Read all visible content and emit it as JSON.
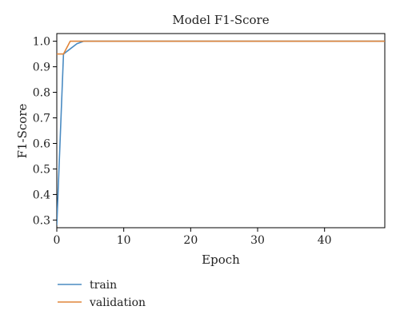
{
  "chart_data": {
    "type": "line",
    "title": "Model F1-Score",
    "xlabel": "Epoch",
    "ylabel": "F1-Score",
    "xlim": [
      0,
      49
    ],
    "ylim": [
      0.27,
      1.03
    ],
    "xticks": [
      0,
      10,
      20,
      30,
      40
    ],
    "yticks": [
      0.3,
      0.4,
      0.5,
      0.6,
      0.7,
      0.8,
      0.9,
      1.0
    ],
    "ytick_labels": [
      "0.3",
      "0.4",
      "0.5",
      "0.6",
      "0.7",
      "0.8",
      "0.9",
      "1.0"
    ],
    "grid": false,
    "legend_position": "below-left",
    "series": [
      {
        "name": "train",
        "color": "#4a8bc2",
        "x": [
          0,
          1,
          2,
          3,
          4,
          5,
          6,
          7,
          8,
          9,
          10,
          11,
          12,
          13,
          14,
          15,
          16,
          17,
          18,
          19,
          20,
          21,
          22,
          23,
          24,
          25,
          26,
          27,
          28,
          29,
          30,
          31,
          32,
          33,
          34,
          35,
          36,
          37,
          38,
          39,
          40,
          41,
          42,
          43,
          44,
          45,
          46,
          47,
          48,
          49
        ],
        "values": [
          0.28,
          0.95,
          0.97,
          0.99,
          1.0,
          1.0,
          1.0,
          1.0,
          1.0,
          1.0,
          1.0,
          1.0,
          1.0,
          1.0,
          1.0,
          1.0,
          1.0,
          1.0,
          1.0,
          1.0,
          1.0,
          1.0,
          1.0,
          1.0,
          1.0,
          1.0,
          1.0,
          1.0,
          1.0,
          1.0,
          1.0,
          1.0,
          1.0,
          1.0,
          1.0,
          1.0,
          1.0,
          1.0,
          1.0,
          1.0,
          1.0,
          1.0,
          1.0,
          1.0,
          1.0,
          1.0,
          1.0,
          1.0,
          1.0,
          1.0
        ]
      },
      {
        "name": "validation",
        "color": "#e0853a",
        "x": [
          0,
          1,
          2,
          3,
          4,
          5,
          6,
          7,
          8,
          9,
          10,
          11,
          12,
          13,
          14,
          15,
          16,
          17,
          18,
          19,
          20,
          21,
          22,
          23,
          24,
          25,
          26,
          27,
          28,
          29,
          30,
          31,
          32,
          33,
          34,
          35,
          36,
          37,
          38,
          39,
          40,
          41,
          42,
          43,
          44,
          45,
          46,
          47,
          48,
          49
        ],
        "values": [
          0.95,
          0.95,
          1.0,
          1.0,
          1.0,
          1.0,
          1.0,
          1.0,
          1.0,
          1.0,
          1.0,
          1.0,
          1.0,
          1.0,
          1.0,
          1.0,
          1.0,
          1.0,
          1.0,
          1.0,
          1.0,
          1.0,
          1.0,
          1.0,
          1.0,
          1.0,
          1.0,
          1.0,
          1.0,
          1.0,
          1.0,
          1.0,
          1.0,
          1.0,
          1.0,
          1.0,
          1.0,
          1.0,
          1.0,
          1.0,
          1.0,
          1.0,
          1.0,
          1.0,
          1.0,
          1.0,
          1.0,
          1.0,
          1.0,
          1.0
        ]
      }
    ]
  }
}
